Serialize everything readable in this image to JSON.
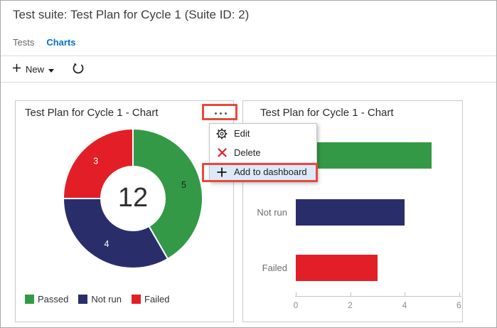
{
  "header": {
    "title": "Test suite: Test Plan for Cycle 1 (Suite ID: 2)",
    "tabs": [
      {
        "label": "Tests",
        "active": false
      },
      {
        "label": "Charts",
        "active": true
      }
    ],
    "toolbar": {
      "new_label": "New",
      "new_icon": "plus-icon",
      "dropdown_icon": "chevron-down-icon",
      "refresh_icon": "refresh-icon"
    }
  },
  "colors": {
    "passed_green": "#339947",
    "not_run_navy": "#292E6B",
    "failed_red": "#E21F26",
    "annotation_red": "#E8493C",
    "tab_active_blue": "#0072C6",
    "menu_highlight_blue": "#DCE9F8"
  },
  "cards": [
    {
      "title": "Test Plan for Cycle 1 - Chart",
      "menu_button": "ellipsis-icon"
    },
    {
      "title": "Test Plan for Cycle 1 - Chart"
    }
  ],
  "context_menu": {
    "items": [
      {
        "label": "Edit",
        "icon": "gear-icon",
        "highlighted": false
      },
      {
        "label": "Delete",
        "icon": "delete-x-icon",
        "highlighted": false
      },
      {
        "label": "Add to dashboard",
        "icon": "plus-icon",
        "highlighted": true
      }
    ]
  },
  "chart_data": [
    {
      "type": "pie",
      "variant": "donut",
      "title": "Test Plan for Cycle 1 - Chart",
      "center_total": "12",
      "slices": [
        {
          "label": "Passed",
          "value": 5,
          "color": "#339947",
          "label_color": "#1E1E1E"
        },
        {
          "label": "Not run",
          "value": 4,
          "color": "#292E6B",
          "label_color": "#FFFFFF"
        },
        {
          "label": "Failed",
          "value": 3,
          "color": "#E21F26",
          "label_color": "#FFFFFF"
        }
      ],
      "legend": [
        "Passed",
        "Not run",
        "Failed"
      ],
      "legend_position": "bottom-left"
    },
    {
      "type": "bar",
      "orientation": "horizontal",
      "title": "Test Plan for Cycle 1 - Chart",
      "categories": [
        "Passed",
        "Not run",
        "Failed"
      ],
      "values": [
        5,
        4,
        3
      ],
      "colors": [
        "#339947",
        "#292E6B",
        "#E21F26"
      ],
      "xlim": [
        0,
        6
      ],
      "xticks": [
        0,
        2,
        4,
        6
      ],
      "grid": false,
      "legend": []
    }
  ]
}
